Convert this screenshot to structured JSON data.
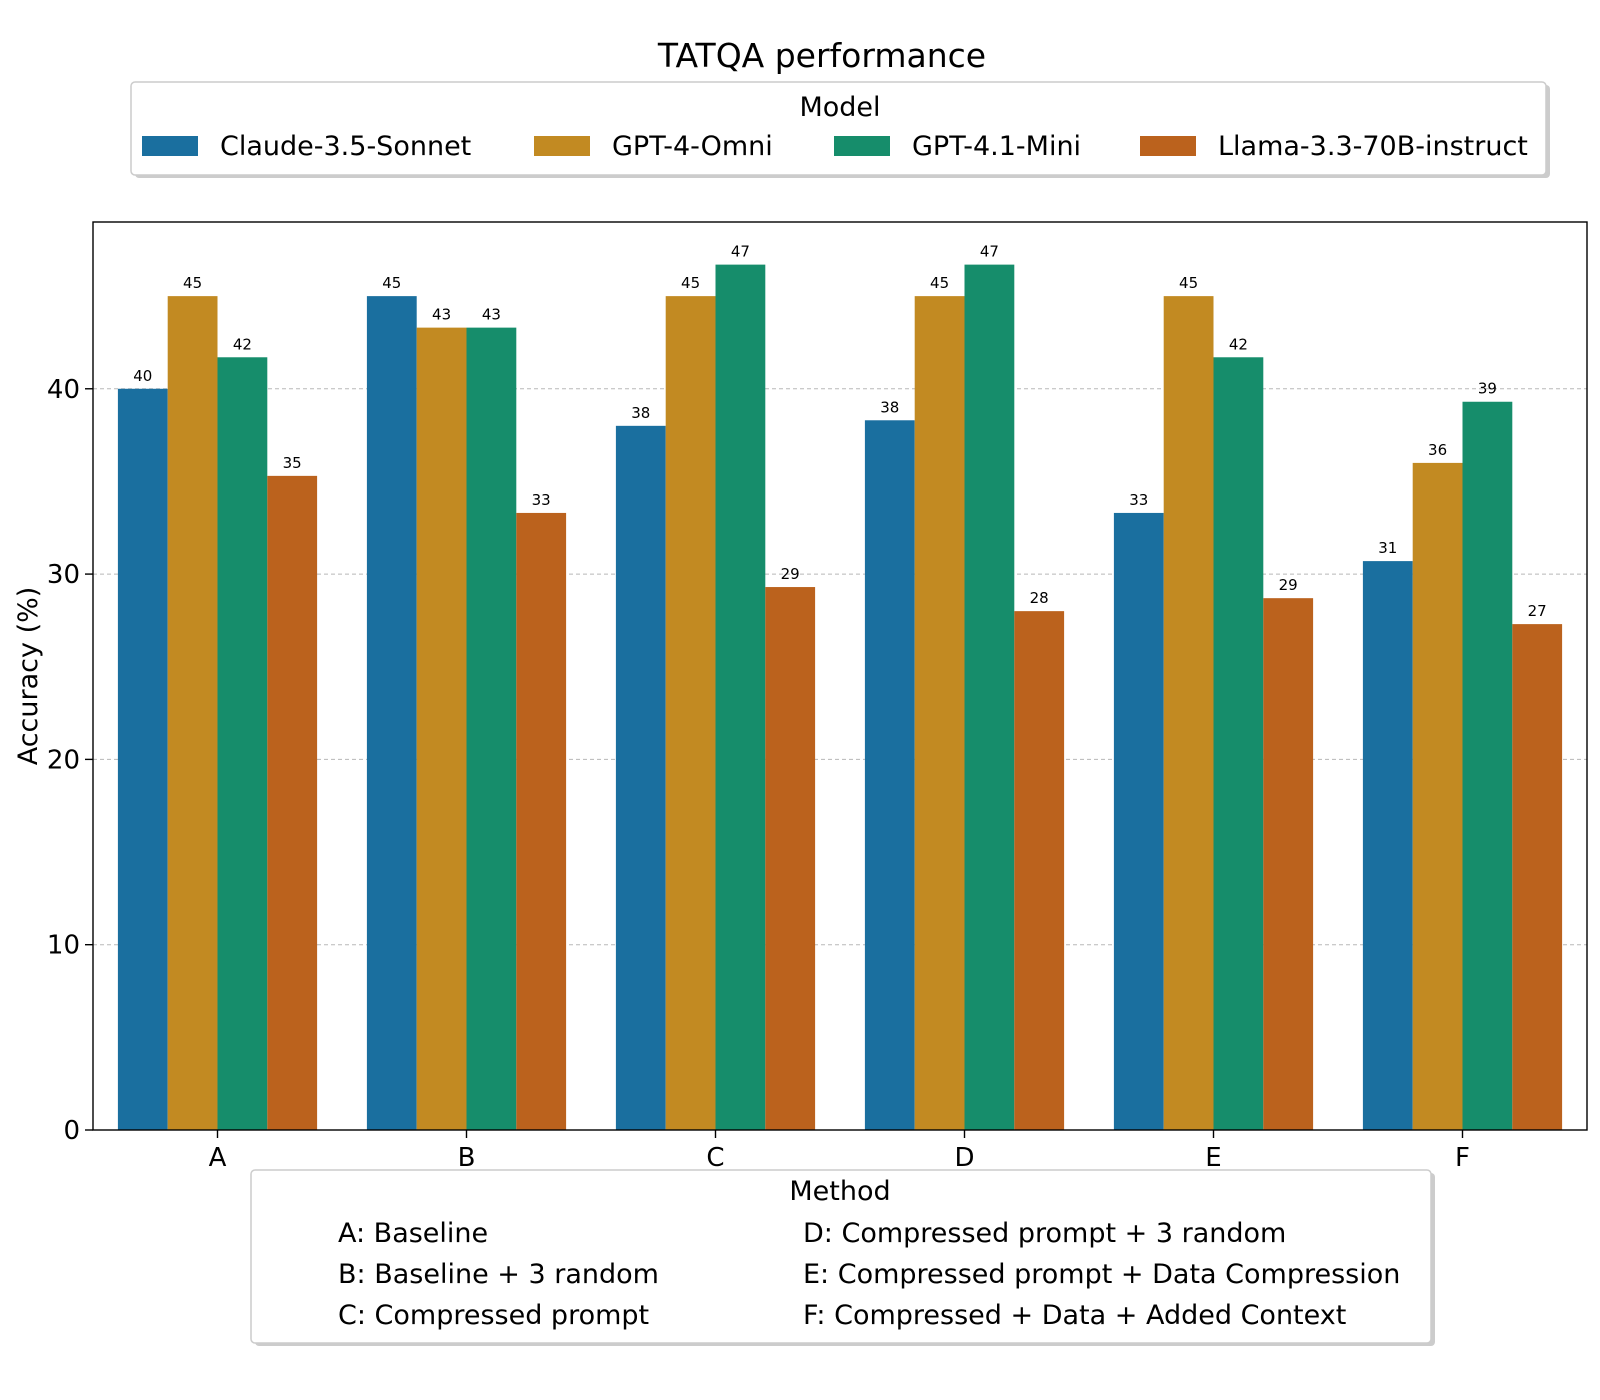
{
  "chart_data": {
    "type": "bar",
    "title": "TATQA performance",
    "xlabel": "",
    "ylabel": "Accuracy (%)",
    "ylim": [
      0,
      49
    ],
    "yticks": [
      0,
      10,
      20,
      30,
      40
    ],
    "grid": "y-dashed",
    "categories": [
      "A",
      "B",
      "C",
      "D",
      "E",
      "F"
    ],
    "series": [
      {
        "name": "Claude-3.5-Sonnet",
        "color": "#1a6f9f",
        "values": [
          40.0,
          45.0,
          38.0,
          38.3,
          33.3,
          30.7
        ],
        "labels": [
          "40",
          "45",
          "38",
          "38",
          "33",
          "31"
        ]
      },
      {
        "name": "GPT-4-Omni",
        "color": "#c28a22",
        "values": [
          45.0,
          43.3,
          45.0,
          45.0,
          45.0,
          36.0
        ],
        "labels": [
          "45",
          "43",
          "45",
          "45",
          "45",
          "36"
        ]
      },
      {
        "name": "GPT-4.1-Mini",
        "color": "#168d6b",
        "values": [
          41.7,
          43.3,
          46.7,
          46.7,
          41.7,
          39.3
        ],
        "labels": [
          "42",
          "43",
          "47",
          "47",
          "42",
          "39"
        ]
      },
      {
        "name": "Llama-3.3-70B-instruct",
        "color": "#bb621d",
        "values": [
          35.3,
          33.3,
          29.3,
          28.0,
          28.7,
          27.3
        ],
        "labels": [
          "35",
          "33",
          "29",
          "28",
          "29",
          "27"
        ]
      }
    ],
    "model_legend": {
      "title": "Model",
      "placement": "top"
    },
    "method_legend": {
      "title": "Method",
      "placement": "bottom",
      "entries": [
        "A: Baseline",
        "B: Baseline + 3 random",
        "C: Compressed prompt",
        "D: Compressed prompt + 3 random",
        "E: Compressed prompt + Data Compression",
        "F: Compressed + Data + Added Context"
      ]
    }
  }
}
